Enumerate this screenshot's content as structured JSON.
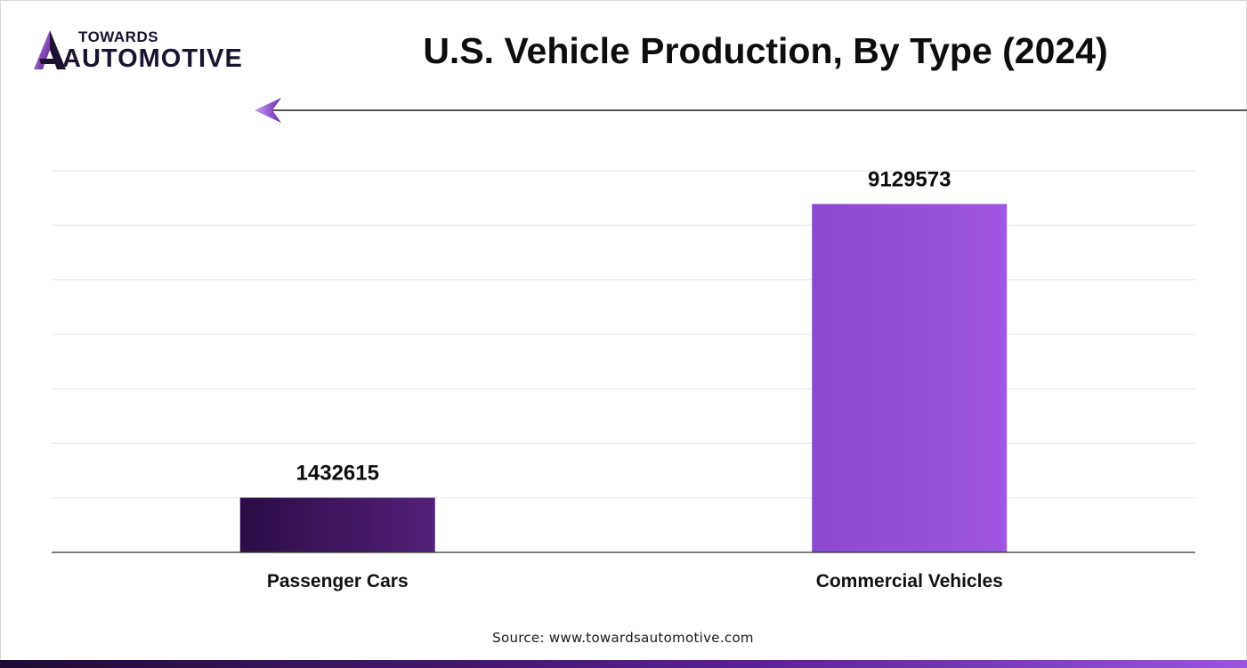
{
  "brand": {
    "line1": "TOWARDS",
    "line2": "AUTOMOTIVE",
    "icon": "logo-a-mark-icon"
  },
  "title": "U.S. Vehicle Production, By Type (2024)",
  "source": "Source: www.towardsautomotive.com",
  "colors": {
    "bar_dark_start": "#2a0c45",
    "bar_dark_end": "#54207a",
    "bar_light_start": "#8c47d0",
    "bar_light_end": "#9f57e2",
    "accent_arrow": "#8a3fd6",
    "gridline": "#e6e6e6"
  },
  "chart_data": {
    "type": "bar",
    "title": "U.S. Vehicle Production, By Type (2024)",
    "categories": [
      "Passenger Cars",
      "Commercial Vehicles"
    ],
    "values": [
      1432615,
      9129573
    ],
    "data_labels": [
      "1432615",
      "9129573"
    ],
    "xlabel": "",
    "ylabel": "",
    "ylim": [
      0,
      10000000
    ],
    "grid": true,
    "legend": "none"
  }
}
